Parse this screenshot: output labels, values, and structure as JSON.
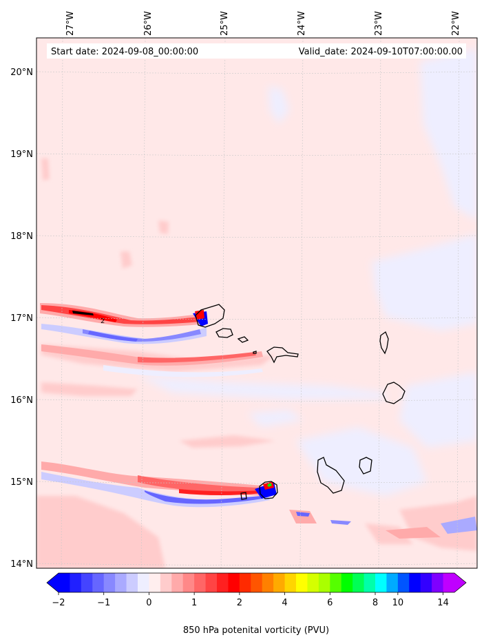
{
  "map": {
    "start_label": "Start date: 2024-09-08_00:00:00",
    "valid_label": "Valid_date: 2024-09-10T07:00:00.00",
    "lon_labels": [
      "27°W",
      "26°W",
      "25°W",
      "24°W",
      "23°W",
      "22°W"
    ],
    "lat_labels": [
      "20°N",
      "19°N",
      "18°N",
      "17°N",
      "16°N",
      "15°N",
      "14°N"
    ],
    "lon_range": [
      -27.35,
      -21.7
    ],
    "lat_range": [
      13.95,
      20.4
    ]
  },
  "colorbar": {
    "label": "850 hPa potenital vorticity (PVU)",
    "tick_labels": [
      "−2",
      "−1",
      "0",
      "1",
      "2",
      "4",
      "6",
      "8",
      "10",
      "14"
    ],
    "levels": [
      -2,
      -1.75,
      -1.5,
      -1.25,
      -1,
      -0.75,
      -0.5,
      -0.25,
      0,
      0.25,
      0.5,
      0.75,
      1,
      1.25,
      1.5,
      1.75,
      2,
      2.5,
      3,
      3.5,
      4,
      4.5,
      5,
      5.5,
      6,
      6.5,
      7,
      7.5,
      8,
      9,
      10,
      11,
      12,
      13,
      14,
      15
    ],
    "colors": [
      "#0000ff",
      "#2020ff",
      "#4444ff",
      "#6666ff",
      "#8888ff",
      "#aaaaff",
      "#ccccff",
      "#eeeeff",
      "#ffeeee",
      "#ffcccc",
      "#ffaaaa",
      "#ff8888",
      "#ff6666",
      "#ff4444",
      "#ff2020",
      "#ff0000",
      "#ff2a00",
      "#ff5500",
      "#ff8000",
      "#ffaa00",
      "#ffd500",
      "#ffff00",
      "#d5ff00",
      "#aaff00",
      "#55ff00",
      "#00ff00",
      "#00ff55",
      "#00ffaa",
      "#00ffff",
      "#00aaff",
      "#0055ff",
      "#0000ff",
      "#3300ff",
      "#7f00ff",
      "#bf00ff"
    ],
    "under_color": "#0000ff",
    "over_color": "#bf00ff"
  }
}
